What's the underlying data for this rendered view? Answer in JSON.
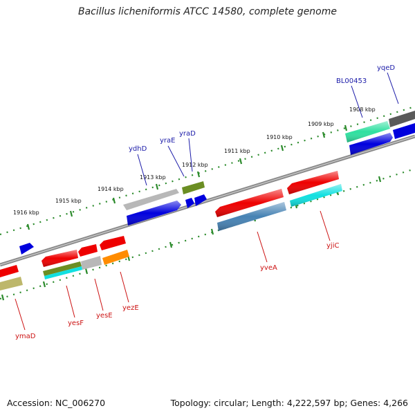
{
  "title": "Bacillus licheniformis ATCC 14580, complete genome",
  "accession": "Accession: NC_006270",
  "summary": "Topology: circular; Length: 4,222,597 bp; Genes: 4,266",
  "colors": {
    "label_forward": "#1a1aa8",
    "label_reverse": "#cc1111",
    "ticks": "#2a8a2a",
    "backbone": "#8a8a8a"
  },
  "kbp_labels": [
    "1908 kbp",
    "1909 kbp",
    "1910 kbp",
    "1911 kbp",
    "1912 kbp",
    "1913 kbp",
    "1914 kbp",
    "1915 kbp",
    "1916 kbp"
  ],
  "forward_genes": [
    "yqeD",
    "BL00453",
    "yraD",
    "yraE",
    "ydhD"
  ],
  "reverse_genes": [
    "yjiC",
    "yveA",
    "yezE",
    "yesE",
    "yesF",
    "ymaD"
  ]
}
